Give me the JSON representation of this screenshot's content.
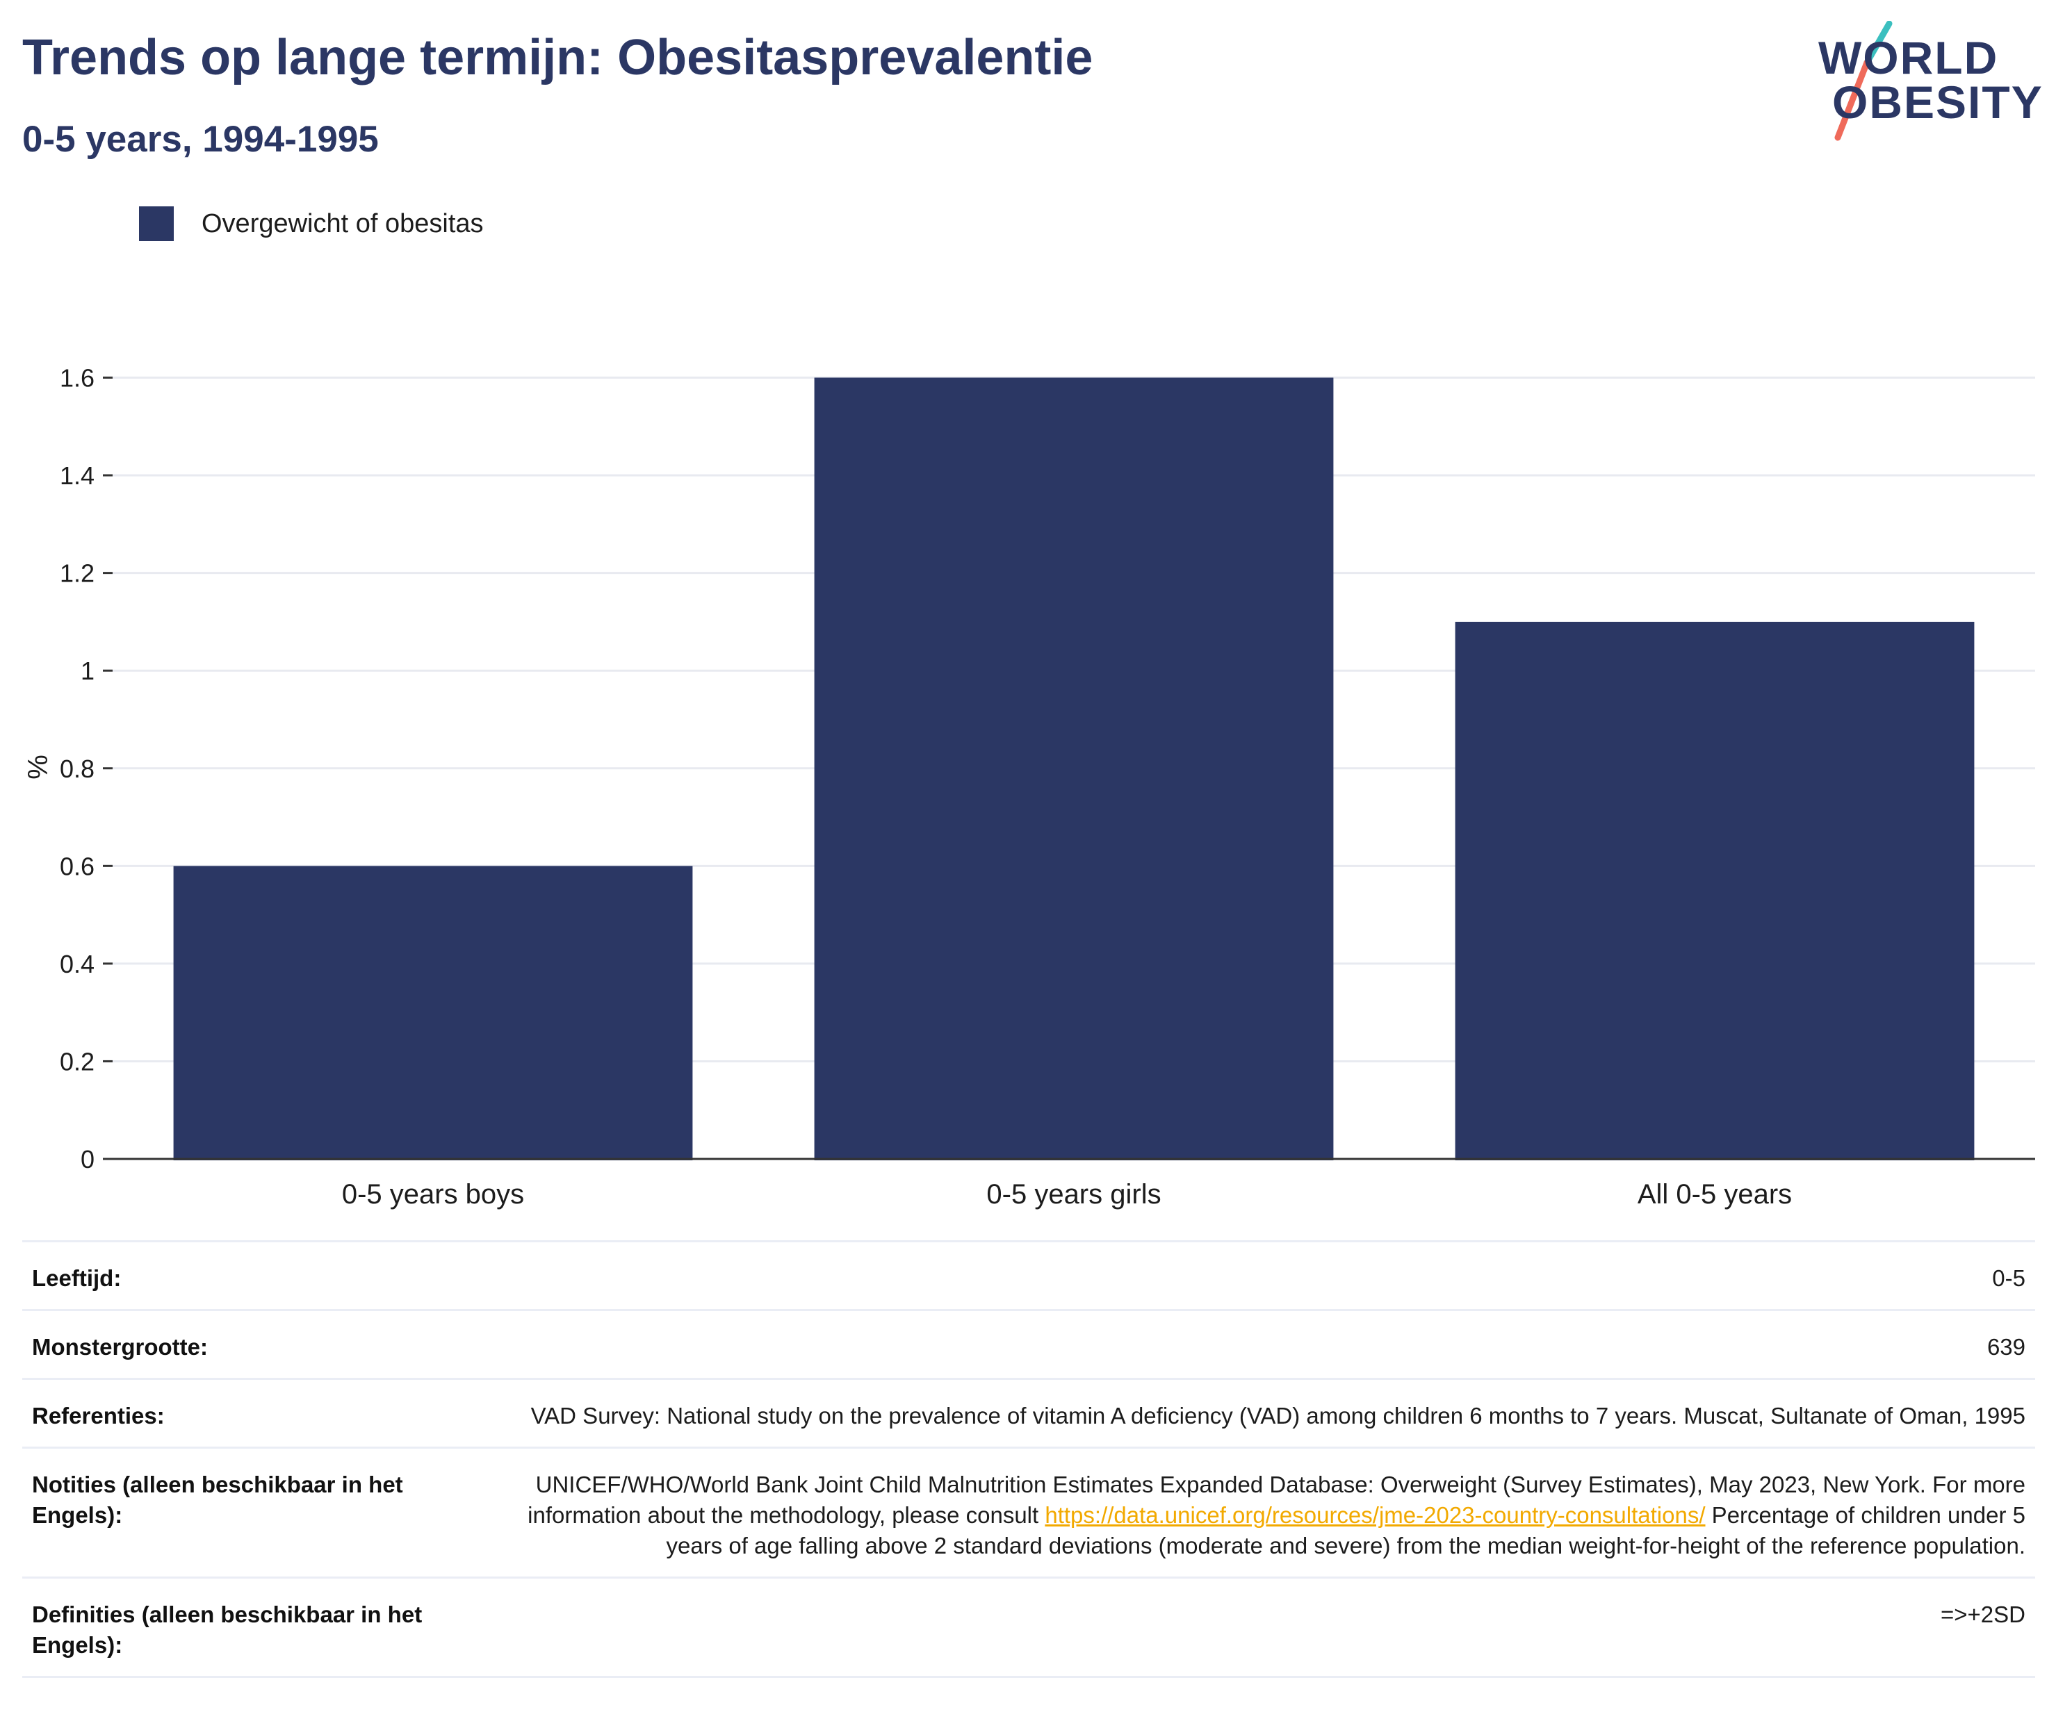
{
  "header": {
    "title": "Trends op lange termijn: Obesitasprevalentie",
    "subtitle": "0-5 years, 1994-1995"
  },
  "logo": {
    "line1": "WORLD",
    "line2": "OBESITY",
    "colors": {
      "text": "#2b3764",
      "slash_top": "#3bbfbf",
      "slash_bottom": "#ef6a5a"
    }
  },
  "legend": {
    "items": [
      {
        "label": "Overgewicht of obesitas",
        "color": "#2b3764"
      }
    ]
  },
  "chart_data": {
    "type": "bar",
    "categories": [
      "0-5 years boys",
      "0-5 years girls",
      "All 0-5 years"
    ],
    "series": [
      {
        "name": "Overgewicht of obesitas",
        "values": [
          0.6,
          1.6,
          1.1
        ],
        "color": "#2b3764"
      }
    ],
    "ylabel": "%",
    "xlabel": "",
    "ylim": [
      0,
      1.6
    ],
    "yticks": [
      0,
      0.2,
      0.4,
      0.6,
      0.8,
      1,
      1.2,
      1.4,
      1.6
    ],
    "ytick_labels": [
      "0",
      "0.2",
      "0.4",
      "0.6",
      "0.8",
      "1",
      "1.2",
      "1.4",
      "1.6"
    ],
    "grid": true,
    "legend_position": "top-left"
  },
  "info": {
    "age": {
      "label": "Leeftijd:",
      "value": "0-5"
    },
    "sample": {
      "label": "Monstergrootte:",
      "value": "639"
    },
    "references": {
      "label": "Referenties:",
      "value": "VAD Survey: National study on the prevalence of vitamin A deficiency (VAD) among children 6 months to 7 years. Muscat, Sultanate of Oman, 1995"
    },
    "notes": {
      "label": "Notities (alleen beschikbaar in het Engels):",
      "text_before": "UNICEF/WHO/World Bank Joint Child Malnutrition Estimates Expanded Database: Overweight (Survey Estimates), May 2023, New York. For more information about the methodology, please consult ",
      "link": "https://data.unicef.org/resources/jme-2023-country-consultations/",
      "text_after": " Percentage of children under 5 years of age falling above 2 standard deviations (moderate and severe) from the median weight-for-height of the reference population."
    },
    "definitions": {
      "label": "Definities (alleen beschikbaar in het Engels):",
      "value": "=>+2SD"
    }
  }
}
